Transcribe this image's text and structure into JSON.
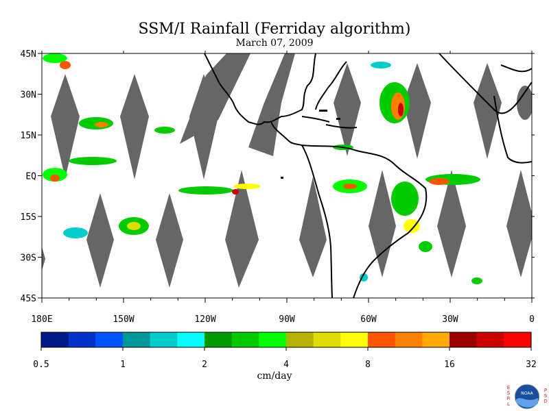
{
  "chart_data": {
    "type": "heatmap",
    "title": "SSM/I Rainfall (Ferriday algorithm)",
    "subtitle": "March 07, 2009",
    "x_ticks": [
      "180E",
      "150W",
      "120W",
      "90W",
      "60W",
      "30W",
      "0"
    ],
    "x_values": [
      -180,
      -150,
      -120,
      -90,
      -60,
      -30,
      0
    ],
    "y_ticks": [
      "45N",
      "30N",
      "15N",
      "EQ",
      "15S",
      "30S",
      "45S"
    ],
    "y_values": [
      45,
      30,
      15,
      0,
      -15,
      -30,
      -45
    ],
    "xlim": [
      -180,
      0
    ],
    "ylim": [
      -45,
      45
    ],
    "colorbar": {
      "label": "cm/day",
      "ticks": [
        "0.5",
        "1",
        "2",
        "4",
        "8",
        "16",
        "32"
      ],
      "colors": [
        "#001a8a",
        "#0033cc",
        "#0055ff",
        "#009999",
        "#00cccc",
        "#00ffff",
        "#009900",
        "#00cc00",
        "#00ff00",
        "#b3b300",
        "#dede00",
        "#ffff00",
        "#ff5500",
        "#ff8000",
        "#ffaa00",
        "#990000",
        "#cc0000",
        "#ff0000"
      ]
    },
    "colors": {
      "land": "#000000",
      "no_data_swath": "#666666"
    }
  },
  "logo": {
    "left_text": "ESRL",
    "right_text": "PSD",
    "center_text": "NOAA"
  }
}
